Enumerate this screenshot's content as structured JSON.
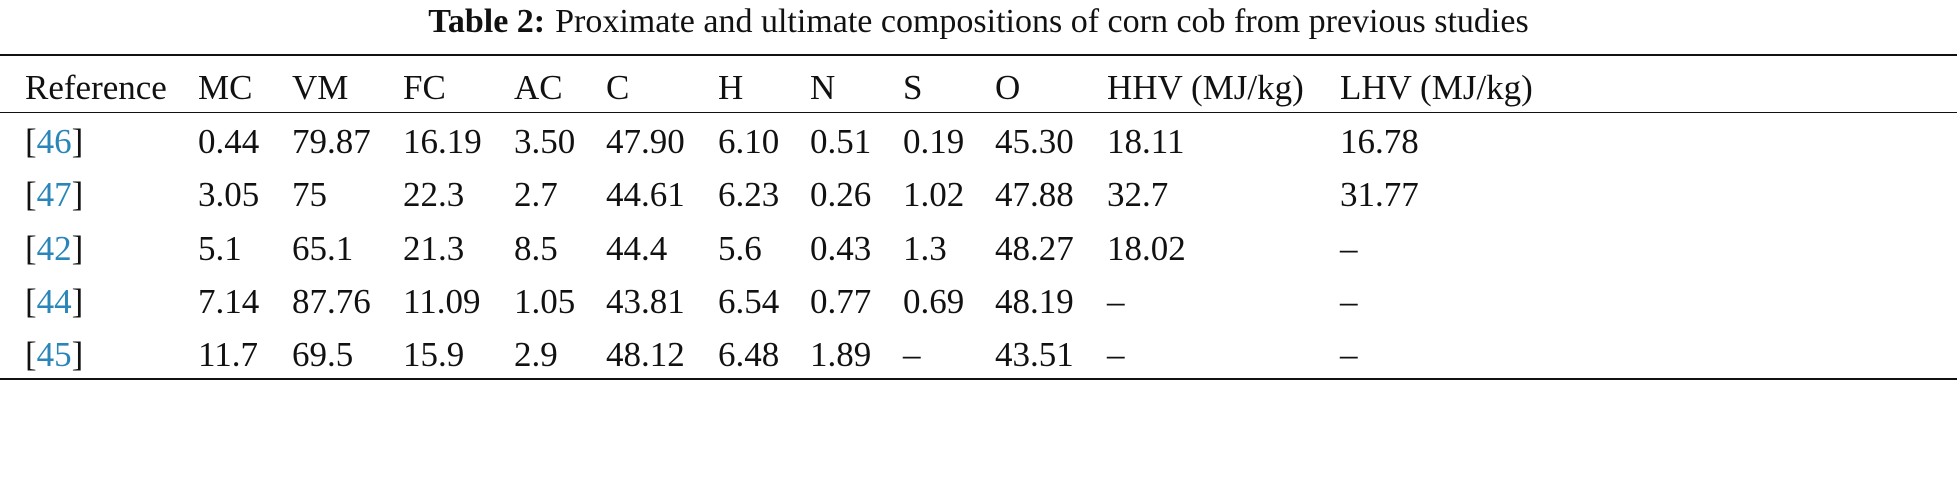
{
  "table": {
    "caption": {
      "label": "Table 2:",
      "text": "Proximate and ultimate compositions of corn cob from previous studies"
    },
    "header": [
      "Reference",
      "MC",
      "VM",
      "FC",
      "AC",
      "C",
      "H",
      "N",
      "S",
      "O",
      "HHV (MJ/kg)",
      "LHV (MJ/kg)"
    ],
    "rows": [
      [
        "[46]",
        "0.44",
        "79.87",
        "16.19",
        "3.50",
        "47.90",
        "6.10",
        "0.51",
        "0.19",
        "45.30",
        "18.11",
        "16.78"
      ],
      [
        "[47]",
        "3.05",
        "75",
        "22.3",
        "2.7",
        "44.61",
        "6.23",
        "0.26",
        "1.02",
        "47.88",
        "32.7",
        "31.77"
      ],
      [
        "[42]",
        "5.1",
        "65.1",
        "21.3",
        "8.5",
        "44.4",
        "5.6",
        "0.43",
        "1.3",
        "48.27",
        "18.02",
        "–"
      ],
      [
        "[44]",
        "7.14",
        "87.76",
        "11.09",
        "1.05",
        "43.81",
        "6.54",
        "0.77",
        "0.69",
        "48.19",
        "–",
        "–"
      ],
      [
        "[45]",
        "11.7",
        "69.5",
        "15.9",
        "2.9",
        "48.12",
        "6.48",
        "1.89",
        "–",
        "43.51",
        "–",
        "–"
      ]
    ]
  }
}
